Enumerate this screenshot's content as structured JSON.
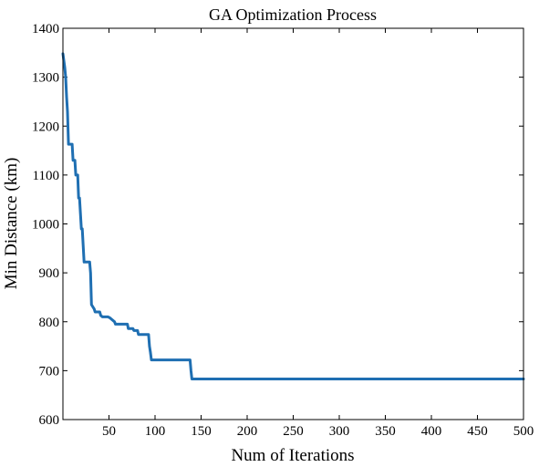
{
  "chart_data": {
    "type": "line",
    "title": "GA Optimization Process",
    "xlabel": "Num of Iterations",
    "ylabel": "Min Distance (km)",
    "xlim": [
      0,
      500
    ],
    "ylim": [
      600,
      1400
    ],
    "xticks": [
      50,
      100,
      150,
      200,
      250,
      300,
      350,
      400,
      450,
      500
    ],
    "yticks": [
      600,
      700,
      800,
      900,
      1000,
      1100,
      1200,
      1300,
      1400
    ],
    "grid": false,
    "legend": "none",
    "line_color": "#1f6fb2",
    "series": [
      {
        "x": [
          0,
          2,
          3,
          4,
          5,
          6,
          7,
          10,
          11,
          13,
          14,
          16,
          17,
          18,
          20,
          21,
          23,
          24,
          26,
          27,
          29,
          30,
          31,
          34,
          35,
          36,
          40,
          41,
          43,
          48,
          49,
          51,
          56,
          57,
          60,
          64,
          70,
          71,
          76,
          77,
          81,
          82,
          86,
          93,
          94,
          95,
          96,
          97,
          138,
          139,
          140,
          500
        ],
        "y": [
          1348,
          1320,
          1300,
          1260,
          1230,
          1163,
          1163,
          1163,
          1130,
          1130,
          1100,
          1100,
          1053,
          1053,
          990,
          990,
          922,
          922,
          922,
          922,
          922,
          900,
          835,
          826,
          820,
          820,
          820,
          813,
          810,
          810,
          810,
          808,
          800,
          795,
          795,
          795,
          795,
          786,
          786,
          782,
          782,
          774,
          774,
          774,
          750,
          738,
          722,
          722,
          722,
          700,
          683,
          683
        ]
      }
    ]
  }
}
